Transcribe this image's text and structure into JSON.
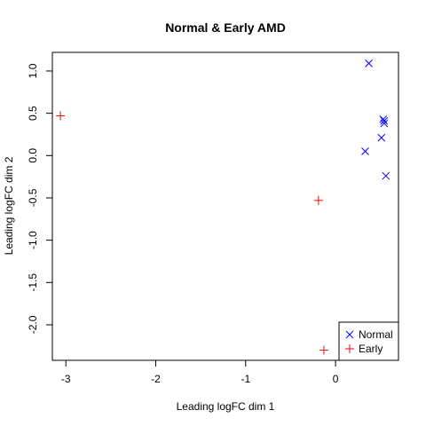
{
  "chart_data": {
    "type": "scatter",
    "title": "Normal & Early AMD",
    "xlabel": "Leading logFC dim 1",
    "ylabel": "Leading logFC dim 2",
    "xlim": [
      -3.15,
      0.7
    ],
    "ylim": [
      -2.42,
      1.22
    ],
    "xticks": [
      -3,
      -2,
      -1,
      0
    ],
    "yticks": [
      -2.0,
      -1.5,
      -1.0,
      -0.5,
      0.0,
      0.5,
      1.0
    ],
    "ytick_labels": [
      "-2.0",
      "-1.5",
      "-1.0",
      "-0.5",
      "0.0",
      "0.5",
      "1.0"
    ],
    "grid": false,
    "legend_position": "bottom-right",
    "series": [
      {
        "name": "Normal",
        "marker": "x",
        "color": "#0000FF",
        "points": [
          {
            "x": 0.37,
            "y": 1.09
          },
          {
            "x": 0.53,
            "y": 0.43
          },
          {
            "x": 0.54,
            "y": 0.41
          },
          {
            "x": 0.54,
            "y": 0.38
          },
          {
            "x": 0.51,
            "y": 0.21
          },
          {
            "x": 0.33,
            "y": 0.05
          },
          {
            "x": 0.56,
            "y": -0.24
          }
        ]
      },
      {
        "name": "Early",
        "marker": "+",
        "color": "#FF0000",
        "points": [
          {
            "x": -3.06,
            "y": 0.47
          },
          {
            "x": -0.19,
            "y": -0.53
          },
          {
            "x": -0.13,
            "y": -2.3
          }
        ]
      }
    ]
  }
}
